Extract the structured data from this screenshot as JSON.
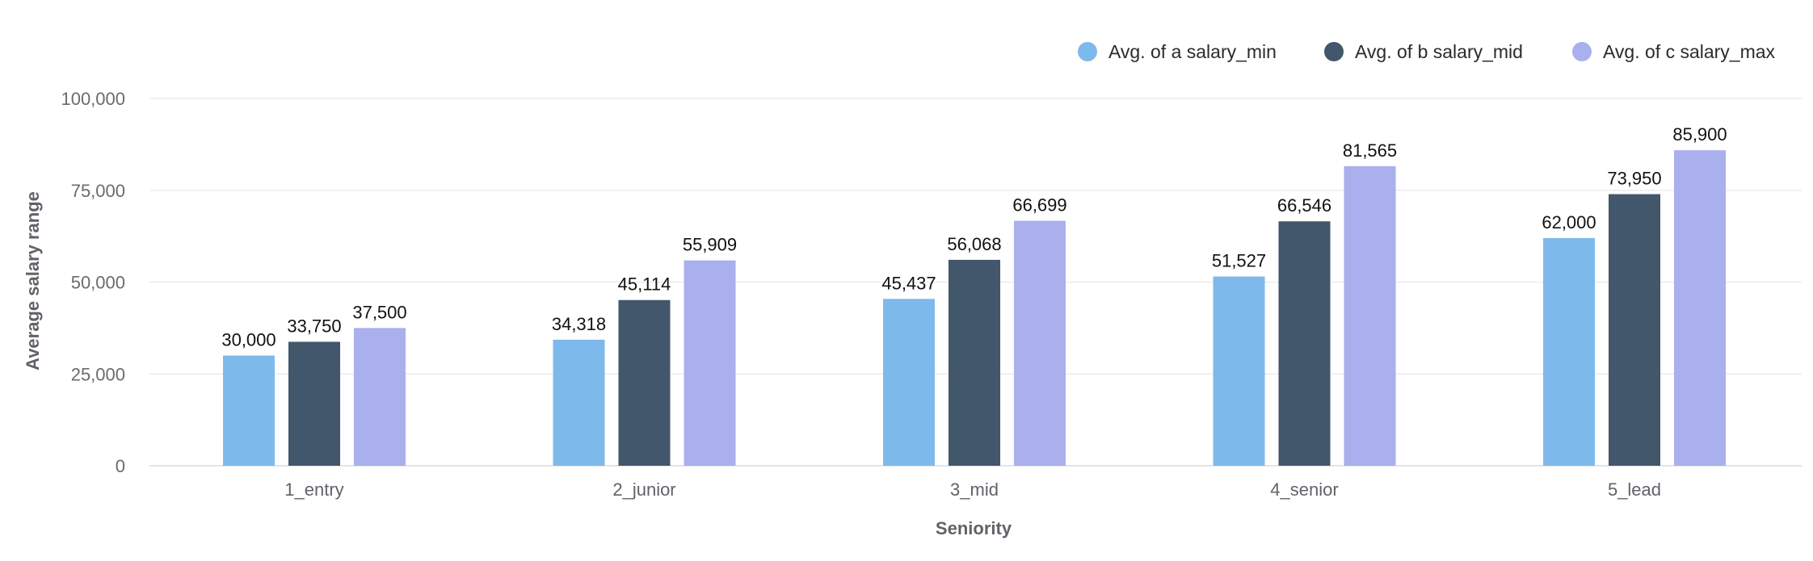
{
  "chart_data": {
    "type": "bar",
    "title": "",
    "xlabel": "Seniority",
    "ylabel": "Average salary range",
    "categories": [
      "1_entry",
      "2_junior",
      "3_mid",
      "4_senior",
      "5_lead"
    ],
    "series": [
      {
        "name": "Avg. of a salary_min",
        "color": "#7EB9EB",
        "values": [
          30000,
          34318,
          45437,
          51527,
          62000
        ]
      },
      {
        "name": "Avg. of b salary_mid",
        "color": "#42566C",
        "values": [
          33750,
          45114,
          56068,
          66546,
          73950
        ]
      },
      {
        "name": "Avg. of c salary_max",
        "color": "#AAAFEE",
        "values": [
          37500,
          55909,
          66699,
          81565,
          85900
        ]
      }
    ],
    "ylim": [
      0,
      100000
    ],
    "yticks": [
      0,
      25000,
      50000,
      75000,
      100000
    ],
    "ytick_labels": [
      "0",
      "25,000",
      "50,000",
      "75,000",
      "100,000"
    ],
    "grid": true,
    "legend_position": "top-right",
    "data_labels": true
  }
}
